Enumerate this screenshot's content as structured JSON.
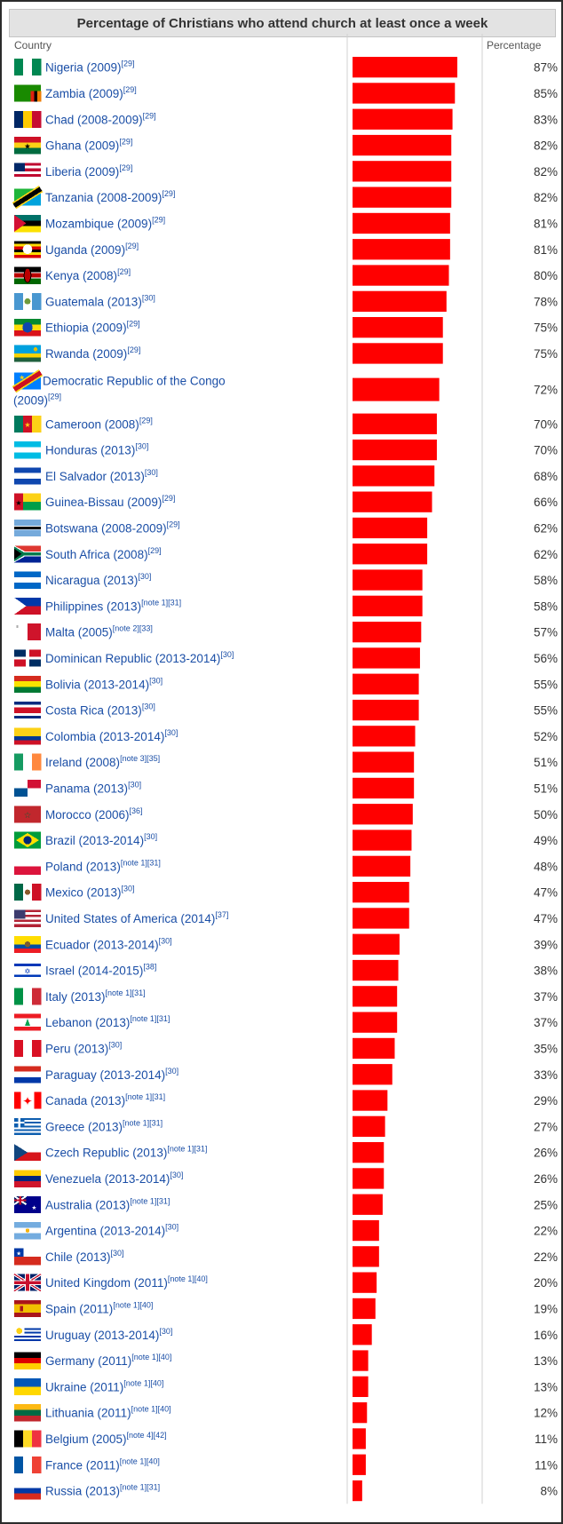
{
  "title": "Percentage of Christians who attend church at least once a week",
  "columns": {
    "country": "Country",
    "percentage": "Percentage"
  },
  "chart_data": {
    "type": "bar",
    "orientation": "horizontal",
    "title": "Percentage of Christians who attend church at least once a week",
    "xlabel": "Percentage",
    "ylabel": "Country",
    "xlim": [
      0,
      100
    ],
    "bar_color": "#ff0000",
    "rows": [
      {
        "country": "Nigeria (2009)",
        "ref": "[29]",
        "value": 87,
        "label": "87%",
        "flag": "nigeria-flag"
      },
      {
        "country": "Zambia (2009)",
        "ref": "[29]",
        "value": 85,
        "label": "85%",
        "flag": "zambia-flag"
      },
      {
        "country": "Chad (2008-2009)",
        "ref": "[29]",
        "value": 83,
        "label": "83%",
        "flag": "chad-flag"
      },
      {
        "country": "Ghana (2009)",
        "ref": "[29]",
        "value": 82,
        "label": "82%",
        "flag": "ghana-flag"
      },
      {
        "country": "Liberia (2009)",
        "ref": "[29]",
        "value": 82,
        "label": "82%",
        "flag": "liberia-flag"
      },
      {
        "country": "Tanzania (2008-2009)",
        "ref": "[29]",
        "value": 82,
        "label": "82%",
        "flag": "tanzania-flag"
      },
      {
        "country": "Mozambique (2009)",
        "ref": "[29]",
        "value": 81,
        "label": "81%",
        "flag": "mozambique-flag"
      },
      {
        "country": "Uganda (2009)",
        "ref": "[29]",
        "value": 81,
        "label": "81%",
        "flag": "uganda-flag"
      },
      {
        "country": "Kenya (2008)",
        "ref": "[29]",
        "value": 80,
        "label": "80%",
        "flag": "kenya-flag"
      },
      {
        "country": "Guatemala (2013)",
        "ref": "[30]",
        "value": 78,
        "label": "78%",
        "flag": "guatemala-flag"
      },
      {
        "country": "Ethiopia (2009)",
        "ref": "[29]",
        "value": 75,
        "label": "75%",
        "flag": "ethiopia-flag"
      },
      {
        "country": "Rwanda (2009)",
        "ref": "[29]",
        "value": 75,
        "label": "75%",
        "flag": "rwanda-flag"
      },
      {
        "country": "Democratic Republic of the Congo",
        "country_cont": "(2009)",
        "ref": "[29]",
        "value": 72,
        "label": "72%",
        "flag": "drc-flag"
      },
      {
        "country": "Cameroon (2008)",
        "ref": "[29]",
        "value": 70,
        "label": "70%",
        "flag": "cameroon-flag"
      },
      {
        "country": "Honduras (2013)",
        "ref": "[30]",
        "value": 70,
        "label": "70%",
        "flag": "honduras-flag"
      },
      {
        "country": "El Salvador (2013)",
        "ref": "[30]",
        "value": 68,
        "label": "68%",
        "flag": "el-salvador-flag"
      },
      {
        "country": "Guinea-Bissau (2009)",
        "ref": "[29]",
        "value": 66,
        "label": "66%",
        "flag": "guinea-bissau-flag"
      },
      {
        "country": "Botswana (2008-2009)",
        "ref": "[29]",
        "value": 62,
        "label": "62%",
        "flag": "botswana-flag"
      },
      {
        "country": "South Africa (2008)",
        "ref": "[29]",
        "value": 62,
        "label": "62%",
        "flag": "south-africa-flag"
      },
      {
        "country": "Nicaragua (2013)",
        "ref": "[30]",
        "value": 58,
        "label": "58%",
        "flag": "nicaragua-flag"
      },
      {
        "country": "Philippines (2013)",
        "ref": "[note 1][31]",
        "value": 58,
        "label": "58%",
        "flag": "philippines-flag"
      },
      {
        "country": "Malta (2005)",
        "ref": "[note 2][33]",
        "value": 57,
        "label": "57%",
        "flag": "malta-flag"
      },
      {
        "country": "Dominican Republic (2013-2014)",
        "ref": "[30]",
        "value": 56,
        "label": "56%",
        "flag": "dominican-republic-flag"
      },
      {
        "country": "Bolivia (2013-2014)",
        "ref": "[30]",
        "value": 55,
        "label": "55%",
        "flag": "bolivia-flag"
      },
      {
        "country": "Costa Rica (2013)",
        "ref": "[30]",
        "value": 55,
        "label": "55%",
        "flag": "costa-rica-flag"
      },
      {
        "country": "Colombia (2013-2014)",
        "ref": "[30]",
        "value": 52,
        "label": "52%",
        "flag": "colombia-flag"
      },
      {
        "country": "Ireland (2008)",
        "ref": "[note 3][35]",
        "value": 51,
        "label": "51%",
        "flag": "ireland-flag"
      },
      {
        "country": "Panama (2013)",
        "ref": "[30]",
        "value": 51,
        "label": "51%",
        "flag": "panama-flag"
      },
      {
        "country": "Morocco (2006)",
        "ref": "[36]",
        "value": 50,
        "label": "50%",
        "flag": "morocco-flag"
      },
      {
        "country": "Brazil (2013-2014)",
        "ref": "[30]",
        "value": 49,
        "label": "49%",
        "flag": "brazil-flag"
      },
      {
        "country": "Poland (2013)",
        "ref": "[note 1][31]",
        "value": 48,
        "label": "48%",
        "flag": "poland-flag"
      },
      {
        "country": "Mexico (2013)",
        "ref": "[30]",
        "value": 47,
        "label": "47%",
        "flag": "mexico-flag"
      },
      {
        "country": "United States of America (2014)",
        "ref": "[37]",
        "value": 47,
        "label": "47%",
        "flag": "usa-flag"
      },
      {
        "country": "Ecuador (2013-2014)",
        "ref": "[30]",
        "value": 39,
        "label": "39%",
        "flag": "ecuador-flag"
      },
      {
        "country": "Israel (2014-2015)",
        "ref": "[38]",
        "value": 38,
        "label": "38%",
        "flag": "israel-flag"
      },
      {
        "country": "Italy (2013)",
        "ref": "[note 1][31]",
        "value": 37,
        "label": "37%",
        "flag": "italy-flag"
      },
      {
        "country": "Lebanon (2013)",
        "ref": "[note 1][31]",
        "value": 37,
        "label": "37%",
        "flag": "lebanon-flag"
      },
      {
        "country": "Peru (2013)",
        "ref": "[30]",
        "value": 35,
        "label": "35%",
        "flag": "peru-flag"
      },
      {
        "country": "Paraguay (2013-2014)",
        "ref": "[30]",
        "value": 33,
        "label": "33%",
        "flag": "paraguay-flag"
      },
      {
        "country": "Canada (2013)",
        "ref": "[note 1][31]",
        "value": 29,
        "label": "29%",
        "flag": "canada-flag"
      },
      {
        "country": "Greece (2013)",
        "ref": "[note 1][31]",
        "value": 27,
        "label": "27%",
        "flag": "greece-flag"
      },
      {
        "country": "Czech Republic (2013)",
        "ref": "[note 1][31]",
        "value": 26,
        "label": "26%",
        "flag": "czech-republic-flag"
      },
      {
        "country": "Venezuela (2013-2014)",
        "ref": "[30]",
        "value": 26,
        "label": "26%",
        "flag": "venezuela-flag"
      },
      {
        "country": "Australia (2013)",
        "ref": "[note 1][31]",
        "value": 25,
        "label": "25%",
        "flag": "australia-flag"
      },
      {
        "country": "Argentina (2013-2014)",
        "ref": "[30]",
        "value": 22,
        "label": "22%",
        "flag": "argentina-flag"
      },
      {
        "country": "Chile (2013)",
        "ref": "[30]",
        "value": 22,
        "label": "22%",
        "flag": "chile-flag"
      },
      {
        "country": "United Kingdom (2011)",
        "ref": "[note 1][40]",
        "value": 20,
        "label": "20%",
        "flag": "united-kingdom-flag"
      },
      {
        "country": "Spain (2011)",
        "ref": "[note 1][40]",
        "value": 19,
        "label": "19%",
        "flag": "spain-flag"
      },
      {
        "country": "Uruguay (2013-2014)",
        "ref": "[30]",
        "value": 16,
        "label": "16%",
        "flag": "uruguay-flag"
      },
      {
        "country": "Germany (2011)",
        "ref": "[note 1][40]",
        "value": 13,
        "label": "13%",
        "flag": "germany-flag"
      },
      {
        "country": "Ukraine (2011)",
        "ref": "[note 1][40]",
        "value": 13,
        "label": "13%",
        "flag": "ukraine-flag"
      },
      {
        "country": "Lithuania (2011)",
        "ref": "[note 1][40]",
        "value": 12,
        "label": "12%",
        "flag": "lithuania-flag"
      },
      {
        "country": "Belgium (2005)",
        "ref": "[note 4][42]",
        "value": 11,
        "label": "11%",
        "flag": "belgium-flag"
      },
      {
        "country": "France (2011)",
        "ref": "[note 1][40]",
        "value": 11,
        "label": "11%",
        "flag": "france-flag"
      },
      {
        "country": "Russia (2013)",
        "ref": "[note 1][31]",
        "value": 8,
        "label": "8%",
        "flag": "russia-flag"
      }
    ]
  }
}
